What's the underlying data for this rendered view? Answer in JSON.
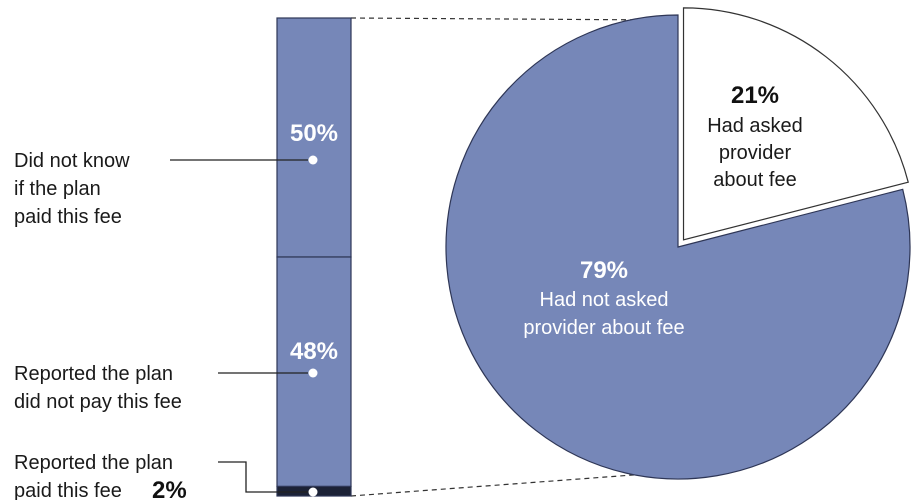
{
  "chart_data": [
    {
      "type": "bar",
      "stacked": true,
      "segments": [
        {
          "label_lines": [
            "Did not know",
            "if the plan",
            "paid this fee"
          ],
          "value": 50,
          "value_label": "50%"
        },
        {
          "label_lines": [
            "Reported the plan",
            "did not pay this fee"
          ],
          "value": 48,
          "value_label": "48%"
        },
        {
          "label_lines": [
            "Reported the plan",
            "paid this fee"
          ],
          "value": 2,
          "value_label": "2%"
        }
      ],
      "colors": {
        "fill": "#7687b8",
        "stroke": "#2e3656",
        "small_segment": "#1c2236"
      }
    },
    {
      "type": "pie",
      "slices": [
        {
          "value": 79,
          "value_label": "79%",
          "label_lines": [
            "Had not asked",
            "provider about fee"
          ],
          "color": "#7687b8"
        },
        {
          "value": 21,
          "value_label": "21%",
          "label_lines": [
            "Had asked",
            "provider",
            "about fee"
          ],
          "color": "#ffffff",
          "exploded": true
        }
      ]
    }
  ]
}
